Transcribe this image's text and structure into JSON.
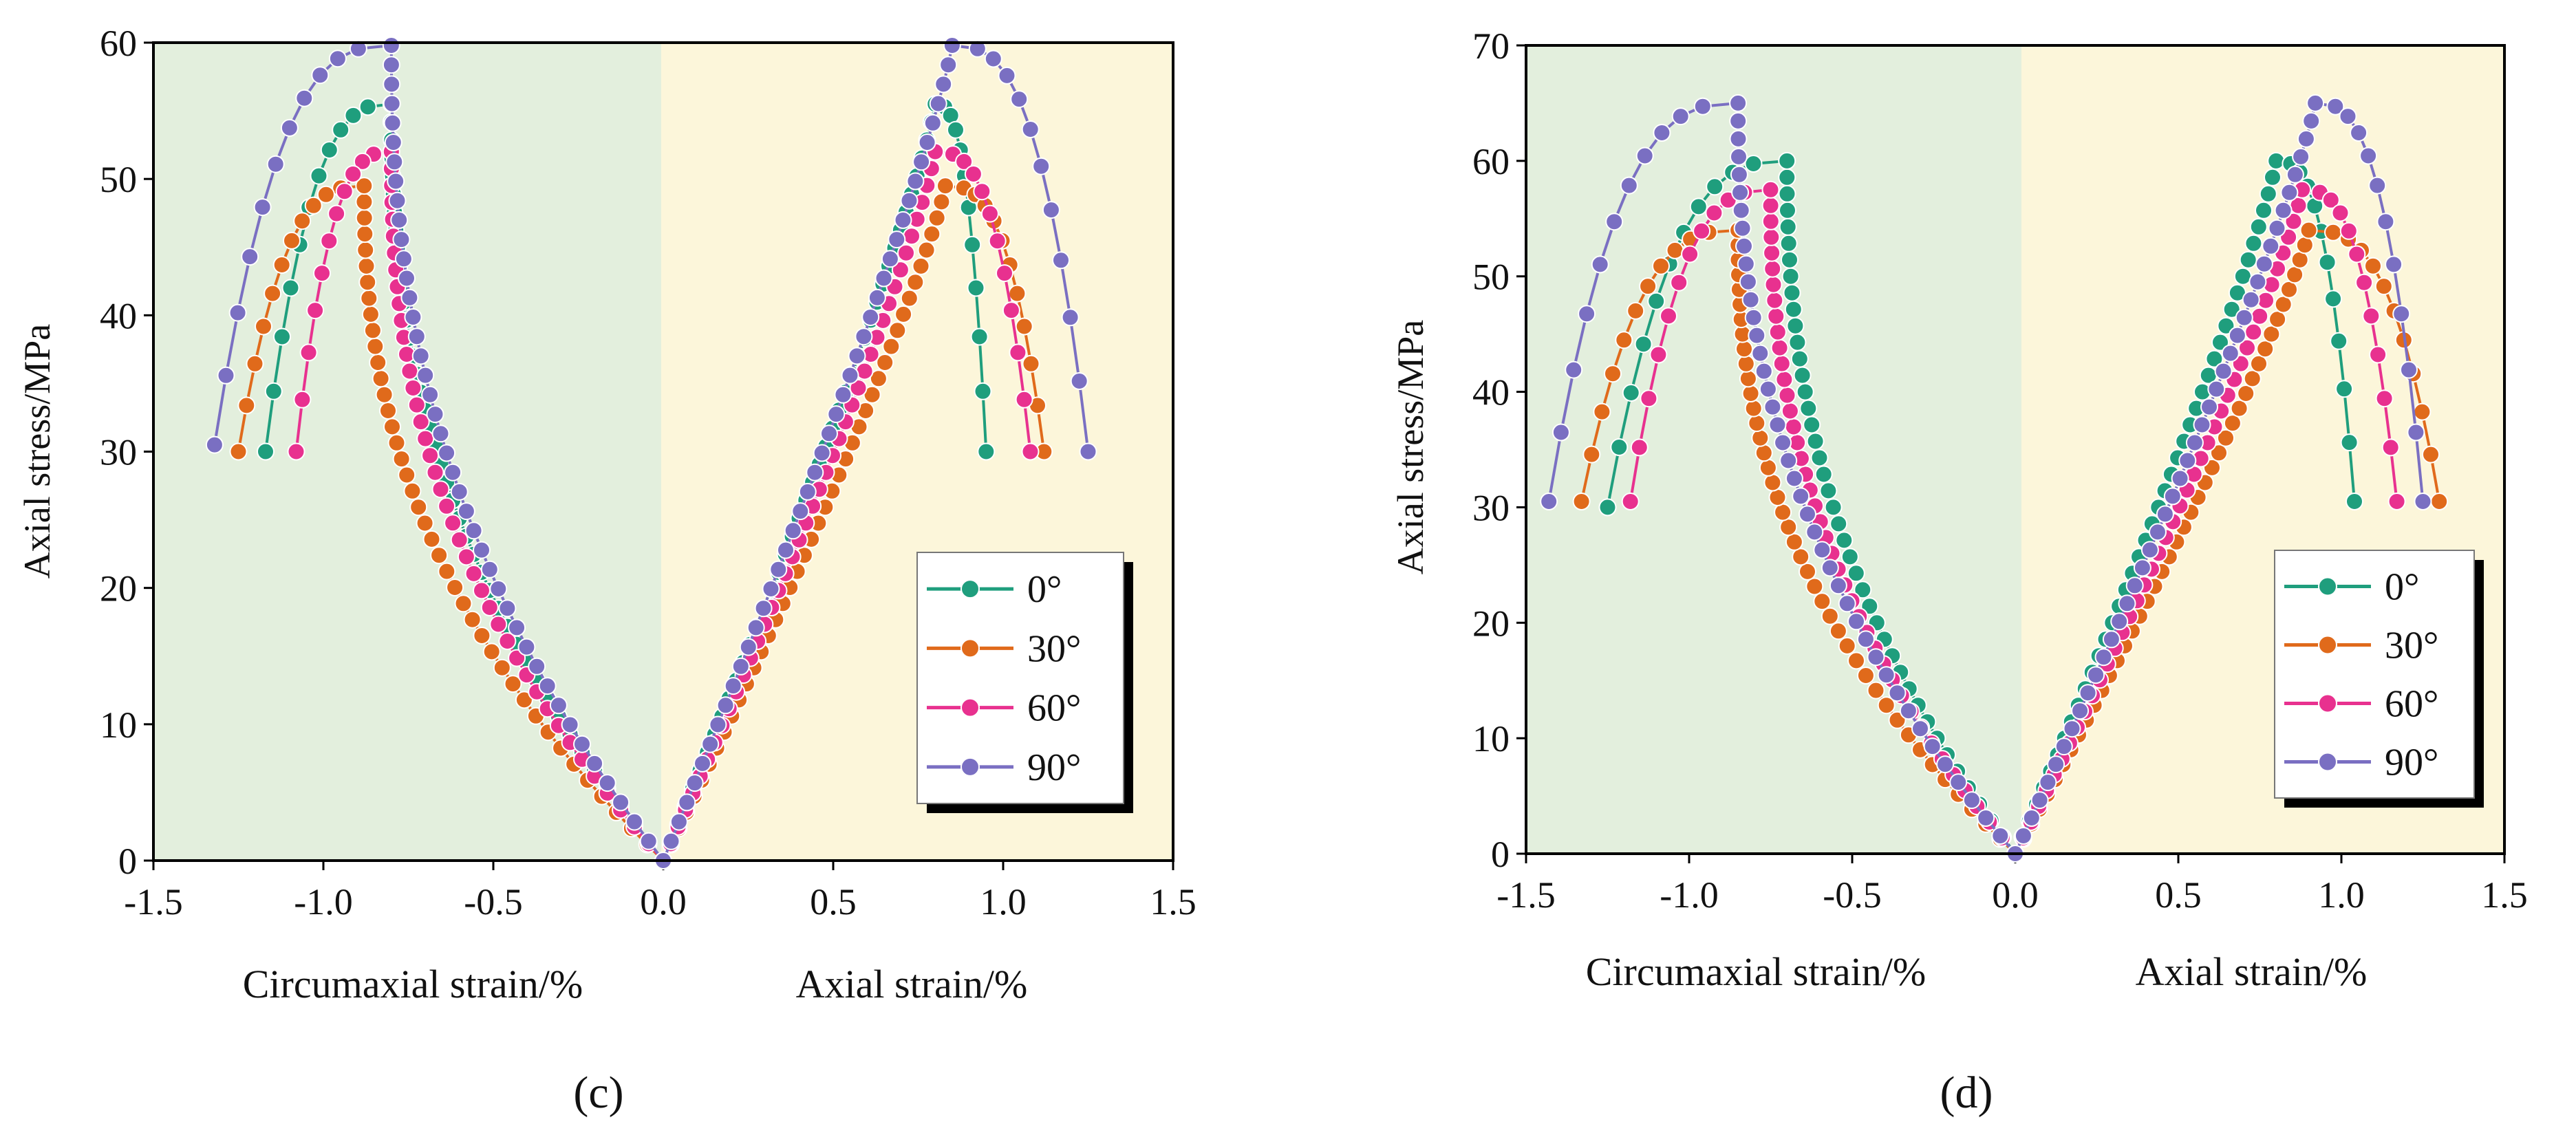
{
  "chart_data": [
    {
      "type": "line",
      "panel_label": "(c)",
      "xlabel_left": "Circumaxial strain/%",
      "xlabel_right": "Axial strain/%",
      "ylabel": "Axial stress/MPa",
      "xlim": [
        -1.5,
        1.5
      ],
      "ylim": [
        0,
        60
      ],
      "xticks": [
        "-1.5",
        "-1.0",
        "-0.5",
        "0.0",
        "0.5",
        "1.0",
        "1.5"
      ],
      "yticks": [
        "0",
        "10",
        "20",
        "30",
        "40",
        "50",
        "60"
      ],
      "legend_position": "lower-right",
      "series": [
        {
          "name": "0°",
          "color": "#1f9e7d",
          "circ": {
            "peak": [
              -0.8,
              55.5
            ],
            "end": [
              -1.17,
              30
            ]
          },
          "axial": {
            "peak": [
              0.8,
              55.5
            ],
            "end": [
              0.95,
              30
            ]
          }
        },
        {
          "name": "30°",
          "color": "#e06a1b",
          "circ": {
            "peak": [
              -0.88,
              49.5
            ],
            "end": [
              -1.25,
              30
            ]
          },
          "axial": {
            "peak": [
              0.83,
              49.5
            ],
            "end": [
              1.12,
              30
            ]
          }
        },
        {
          "name": "60°",
          "color": "#e8318f",
          "circ": {
            "peak": [
              -0.8,
              52
            ],
            "end": [
              -1.08,
              30
            ]
          },
          "axial": {
            "peak": [
              0.8,
              52
            ],
            "end": [
              1.08,
              30
            ]
          }
        },
        {
          "name": "90°",
          "color": "#7a6fc2",
          "circ": {
            "peak": [
              -0.8,
              59.8
            ],
            "end": [
              -1.32,
              30.5
            ]
          },
          "axial": {
            "peak": [
              0.85,
              59.8
            ],
            "end": [
              1.25,
              30
            ]
          }
        }
      ]
    },
    {
      "type": "line",
      "panel_label": "(d)",
      "xlabel_left": "Circumaxial strain/%",
      "xlabel_right": "Axial strain/%",
      "ylabel": "Axial  stress/MPa",
      "xlim": [
        -1.5,
        1.5
      ],
      "ylim": [
        0,
        70
      ],
      "xticks": [
        "-1.5",
        "-1.0",
        "-0.5",
        "0.0",
        "0.5",
        "1.0",
        "1.5"
      ],
      "yticks": [
        "0",
        "10",
        "20",
        "30",
        "40",
        "50",
        "60",
        "70"
      ],
      "legend_position": "lower-right",
      "series": [
        {
          "name": "0°",
          "color": "#1f9e7d",
          "circ": {
            "peak": [
              -0.7,
              60
            ],
            "end": [
              -1.25,
              30
            ]
          },
          "axial": {
            "peak": [
              0.8,
              60
            ],
            "end": [
              1.04,
              30.5
            ]
          }
        },
        {
          "name": "30°",
          "color": "#e06a1b",
          "circ": {
            "peak": [
              -0.85,
              54
            ],
            "end": [
              -1.33,
              30.5
            ]
          },
          "axial": {
            "peak": [
              0.9,
              54
            ],
            "end": [
              1.3,
              30.5
            ]
          }
        },
        {
          "name": "60°",
          "color": "#e8318f",
          "circ": {
            "peak": [
              -0.75,
              57.5
            ],
            "end": [
              -1.18,
              30.5
            ]
          },
          "axial": {
            "peak": [
              0.88,
              57.5
            ],
            "end": [
              1.17,
              30.5
            ]
          }
        },
        {
          "name": "90°",
          "color": "#7a6fc2",
          "circ": {
            "peak": [
              -0.85,
              65
            ],
            "end": [
              -1.43,
              30.5
            ]
          },
          "axial": {
            "peak": [
              0.92,
              65
            ],
            "end": [
              1.25,
              30.5
            ]
          }
        }
      ]
    }
  ]
}
